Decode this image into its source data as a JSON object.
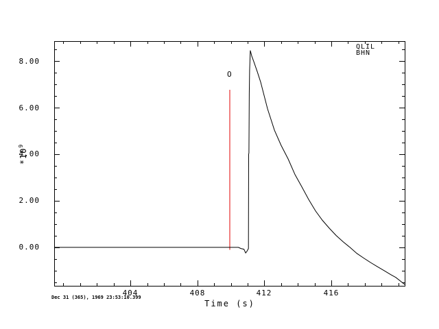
{
  "labels": {
    "timestamp": "Dec 31 (365), 1969 23:53:10.399"
  },
  "chart_data": {
    "type": "line",
    "title": "",
    "xlabel": "Time (s)",
    "ylabel": "*10",
    "ylabel_exponent": "9",
    "grid": false,
    "legend": "none",
    "background_color": "#ffffff",
    "axis_color": "#000000",
    "xlim": [
      399.45,
      420.38
    ],
    "ylim": [
      -1.65,
      8.85
    ],
    "xticks": [
      {
        "value": 404,
        "label": "404"
      },
      {
        "value": 408,
        "label": "408"
      },
      {
        "value": 412,
        "label": "412"
      },
      {
        "value": 416,
        "label": "416"
      }
    ],
    "xticks_minor": [
      400,
      401,
      402,
      403,
      405,
      406,
      407,
      409,
      410,
      411,
      413,
      414,
      415,
      417,
      418,
      419,
      420
    ],
    "yticks": [
      {
        "value": 8,
        "label": "8.00"
      },
      {
        "value": 6,
        "label": "6.00"
      },
      {
        "value": 4,
        "label": "4.00"
      },
      {
        "value": 2,
        "label": "2.00"
      },
      {
        "value": 0,
        "label": "0.00"
      }
    ],
    "yticks_minor": [
      -1.5,
      -1.0,
      -0.5,
      0.5,
      1.0,
      1.5,
      2.5,
      3.0,
      3.5,
      4.5,
      5.0,
      5.5,
      6.5,
      7.0,
      7.5,
      8.5
    ],
    "station": [
      "QLIL",
      "BHN"
    ],
    "event_marker": {
      "label": "O",
      "time": 409.93,
      "value_from": -0.1,
      "value_to": 6.76,
      "color": "#e00000"
    },
    "series": [
      {
        "name": "waveform",
        "color": "#000000",
        "units": "x10^9",
        "points": [
          [
            399.45,
            0.0
          ],
          [
            410.45,
            0.0
          ],
          [
            410.6,
            -0.05
          ],
          [
            410.78,
            -0.08
          ],
          [
            410.88,
            -0.24
          ],
          [
            410.95,
            -0.18
          ],
          [
            411.05,
            -0.05
          ],
          [
            411.06,
            4.0
          ],
          [
            411.08,
            4.05
          ],
          [
            411.1,
            6.6
          ],
          [
            411.12,
            7.6
          ],
          [
            411.16,
            8.45
          ],
          [
            411.25,
            8.2
          ],
          [
            411.37,
            7.97
          ],
          [
            411.58,
            7.53
          ],
          [
            411.78,
            7.09
          ],
          [
            412.19,
            5.95
          ],
          [
            412.6,
            5.03
          ],
          [
            413.0,
            4.38
          ],
          [
            413.42,
            3.79
          ],
          [
            413.83,
            3.12
          ],
          [
            414.24,
            2.59
          ],
          [
            414.65,
            2.05
          ],
          [
            415.06,
            1.56
          ],
          [
            415.47,
            1.16
          ],
          [
            415.88,
            0.82
          ],
          [
            416.29,
            0.51
          ],
          [
            416.7,
            0.24
          ],
          [
            417.11,
            0.0
          ],
          [
            417.52,
            -0.26
          ],
          [
            417.93,
            -0.46
          ],
          [
            418.34,
            -0.65
          ],
          [
            418.75,
            -0.83
          ],
          [
            419.16,
            -1.0
          ],
          [
            419.55,
            -1.17
          ],
          [
            419.85,
            -1.29
          ],
          [
            420.38,
            -1.59
          ]
        ]
      }
    ]
  }
}
